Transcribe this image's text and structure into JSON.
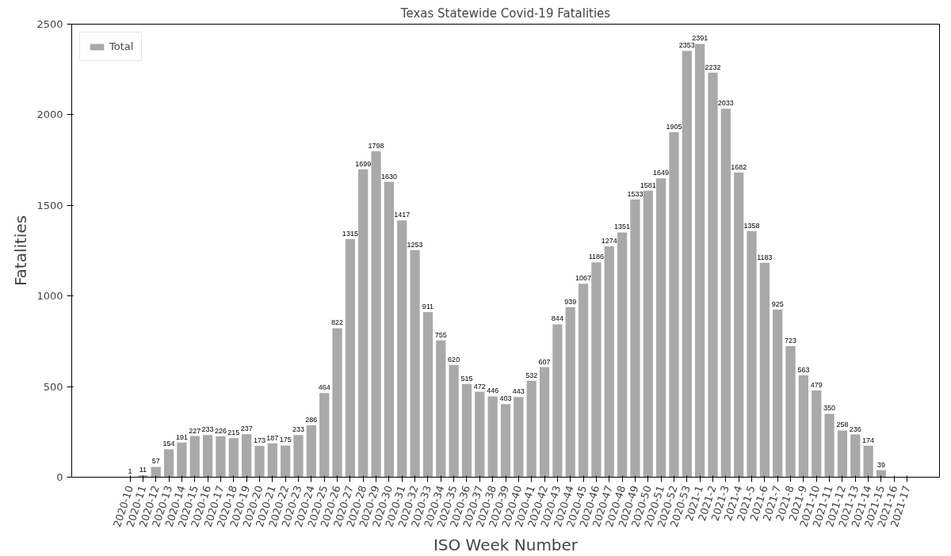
{
  "chart_data": {
    "type": "bar",
    "title": "Texas Statewide Covid-19 Fatalities",
    "xlabel": "ISO Week Number",
    "ylabel": "Fatalities",
    "categories": [
      "2020-10",
      "2020-11",
      "2020-12",
      "2020-13",
      "2020-14",
      "2020-15",
      "2020-16",
      "2020-17",
      "2020-18",
      "2020-19",
      "2020-20",
      "2020-21",
      "2020-22",
      "2020-23",
      "2020-24",
      "2020-25",
      "2020-26",
      "2020-27",
      "2020-28",
      "2020-29",
      "2020-30",
      "2020-31",
      "2020-32",
      "2020-33",
      "2020-34",
      "2020-35",
      "2020-36",
      "2020-37",
      "2020-38",
      "2020-39",
      "2020-40",
      "2020-41",
      "2020-42",
      "2020-43",
      "2020-44",
      "2020-45",
      "2020-46",
      "2020-47",
      "2020-48",
      "2020-49",
      "2020-50",
      "2020-51",
      "2020-52",
      "2020-53",
      "2021-1",
      "2021-2",
      "2021-3",
      "2021-4",
      "2021-5",
      "2021-6",
      "2021-7",
      "2021-8",
      "2021-9",
      "2021-10",
      "2021-11",
      "2021-12",
      "2021-13",
      "2021-14",
      "2021-15",
      "2021-16",
      "2021-17"
    ],
    "series": [
      {
        "name": "Total",
        "color": "#a9a9a9",
        "values": [
          1,
          11,
          57,
          154,
          191,
          227,
          233,
          226,
          215,
          237,
          173,
          187,
          175,
          233,
          286,
          464,
          822,
          1315,
          1699,
          1798,
          1630,
          1417,
          1253,
          911,
          755,
          620,
          515,
          472,
          446,
          403,
          443,
          532,
          607,
          844,
          939,
          1067,
          1186,
          1274,
          1351,
          1533,
          1581,
          1649,
          1905,
          2353,
          2391,
          2232,
          2033,
          1682,
          1358,
          1183,
          925,
          723,
          563,
          479,
          350,
          258,
          236,
          174,
          39,
          null,
          null
        ]
      }
    ],
    "ylim": [
      0,
      2500
    ],
    "yticks": [
      0,
      500,
      1000,
      1500,
      2000,
      2500
    ],
    "data_labels": true,
    "legend": "top left",
    "grid": false
  }
}
